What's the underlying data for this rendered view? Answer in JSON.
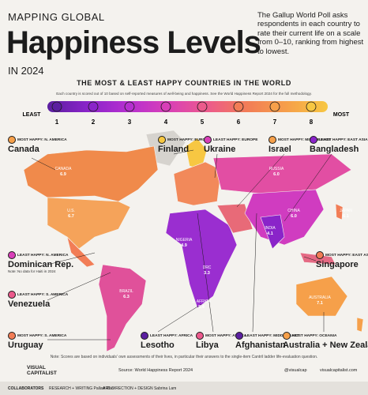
{
  "header": {
    "kicker": "MAPPING GLOBAL",
    "title": "Happiness Levels",
    "year": "IN 2024",
    "description": "The Gallup World Poll asks respondents in each country to rate their current life on a scale from 0–10, ranking from highest to lowest."
  },
  "subtitle": "THE MOST & LEAST HAPPY COUNTRIES IN THE WORLD",
  "scale": {
    "note": "Each country is scored out of 10 based on self-reported measures of well-being and happiness. See the World Happiness Report 2024 for the full methodology.",
    "least": "LEAST",
    "most": "MOST",
    "ticks": [
      1,
      2,
      3,
      4,
      5,
      6,
      7,
      8
    ],
    "colors": [
      "#5b1fa0",
      "#8a24c9",
      "#b52fd0",
      "#d83fb8",
      "#ec5a8c",
      "#f27d56",
      "#f6a04a",
      "#f7c742"
    ]
  },
  "callouts": [
    {
      "kind": "MOST HAPPY: N. AMERICA",
      "country": "Canada",
      "color": "#f6a04a"
    },
    {
      "kind": "MOST HAPPY: EUROPE",
      "country": "Finland",
      "color": "#f7c742"
    },
    {
      "kind": "LEAST HAPPY: EUROPE",
      "country": "Ukraine",
      "color": "#d83fb8"
    },
    {
      "kind": "MOST HAPPY: MIDDLE EAST",
      "country": "Israel",
      "color": "#f6a04a"
    },
    {
      "kind": "LEAST HAPPY: EAST ASIA",
      "country": "Bangladesh",
      "color": "#8a24c9"
    },
    {
      "kind": "LEAST HAPPY: N. AMERICA",
      "country": "Dominican Rep.",
      "color": "#d83fb8",
      "note": "Note: No data for Haiti in 2024"
    },
    {
      "kind": "LEAST HAPPY: S. AMERICA",
      "country": "Venezuela",
      "color": "#ec5a8c"
    },
    {
      "kind": "MOST HAPPY: S. AMERICA",
      "country": "Uruguay",
      "color": "#f27d56"
    },
    {
      "kind": "LEAST HAPPY: AFRICA",
      "country": "Lesotho",
      "color": "#5b1fa0"
    },
    {
      "kind": "MOST HAPPY: AFRICA",
      "country": "Libya",
      "color": "#ec5a8c"
    },
    {
      "kind": "LEAST HAPPY: MIDDLE EAST",
      "country": "Afghanistan",
      "color": "#5b1fa0"
    },
    {
      "kind": "MOST HAPPY: OCEANIA",
      "country": "Australia + New Zealand",
      "color": "#f6a04a"
    },
    {
      "kind": "MOST HAPPY: EAST ASIA",
      "country": "Singapore",
      "color": "#f27d56"
    }
  ],
  "map_labels": [
    {
      "name": "CANADA",
      "value": "6.9"
    },
    {
      "name": "U.S.",
      "value": "6.7"
    },
    {
      "name": "BRAZIL",
      "value": "6.3"
    },
    {
      "name": "RUSSIA",
      "value": "6.0"
    },
    {
      "name": "CHINA",
      "value": "6.0"
    },
    {
      "name": "INDIA",
      "value": "4.1"
    },
    {
      "name": "JAPAN",
      "value": "6.1"
    },
    {
      "name": "AUSTRALIA",
      "value": "7.1"
    },
    {
      "name": "DRC",
      "value": "3.3"
    },
    {
      "name": "NIGERIA",
      "value": "4.9"
    },
    {
      "name": "S. AFRICA",
      "value": "5.4"
    }
  ],
  "footer": {
    "note": "Note: Scores are based on individuals' own assessments of their lives, in particular their answers to the single-item Cantril ladder life-evaluation question.",
    "brand": "VISUAL CAPITALIST",
    "source": "Source: World Happiness Report 2024",
    "social": [
      "@visualcap",
      "visualcapitalist.com"
    ],
    "collaborators": "COLLABORATORS",
    "research": "RESEARCH + WRITING Pallavi Rao",
    "design": "ART DIRECTION + DESIGN Sabrina Lam"
  }
}
